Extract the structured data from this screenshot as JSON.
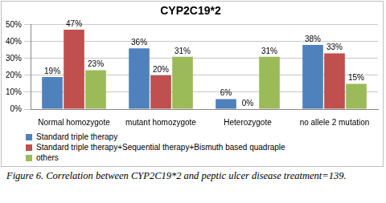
{
  "chart_data": {
    "type": "bar",
    "title": "CYP2C19*2",
    "caption": "Figure 6. Correlation between CYP2C19*2 and peptic ulcer disease treatment=139.",
    "categories": [
      "Normal homozygote",
      "mutant homozygote",
      "Heterozygote",
      "no allele 2 mutation"
    ],
    "series": [
      {
        "name": "Standard triple therapy",
        "color": "#4f81bd",
        "values": [
          19,
          36,
          6,
          38
        ],
        "value_labels": [
          "19%",
          "36%",
          "6%",
          "38%"
        ]
      },
      {
        "name": "Standard triple therapy+Sequential therapy+Bismuth based quadraple",
        "color": "#c0504d",
        "values": [
          47,
          20,
          0,
          33
        ],
        "value_labels": [
          "47%",
          "20%",
          "0%",
          "33%"
        ]
      },
      {
        "name": "others",
        "color": "#9bbb59",
        "values": [
          23,
          31,
          31,
          15
        ],
        "value_labels": [
          "23%",
          "31%",
          "31%",
          "15%"
        ]
      }
    ],
    "ylim": [
      0,
      50
    ],
    "yticks": [
      {
        "value": 0,
        "label": "0%"
      },
      {
        "value": 10,
        "label": "10%"
      },
      {
        "value": 20,
        "label": "20%"
      },
      {
        "value": 30,
        "label": "30%"
      },
      {
        "value": 40,
        "label": "40%"
      },
      {
        "value": 50,
        "label": "50%"
      }
    ],
    "grid": true,
    "data_labels": true,
    "legend": "bottom"
  }
}
